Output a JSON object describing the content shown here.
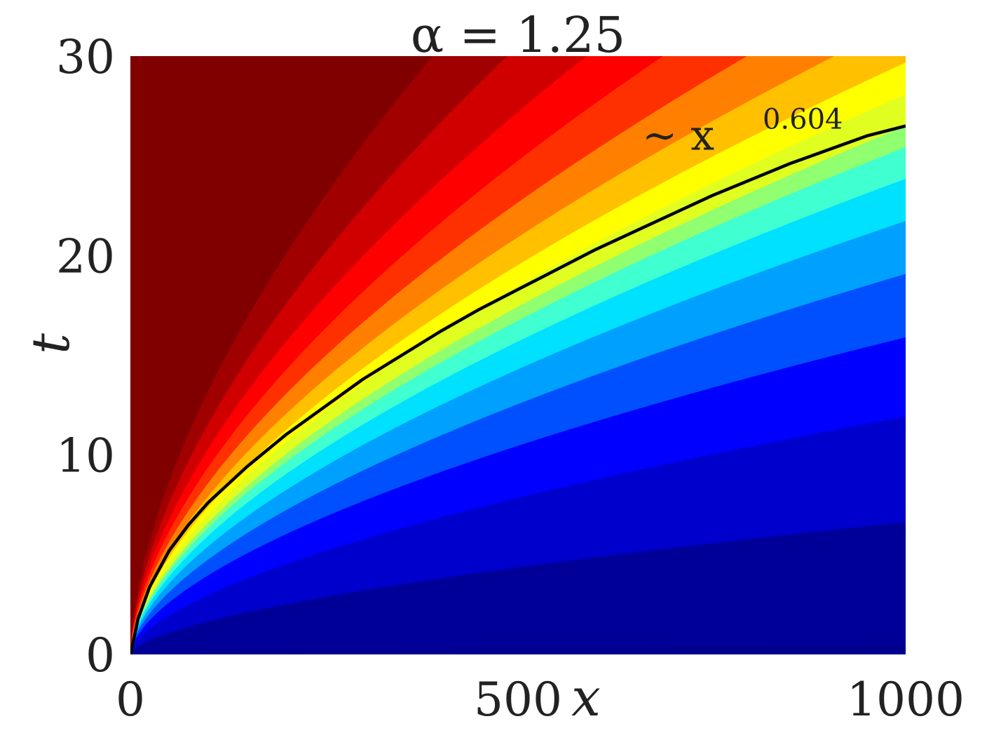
{
  "chart_data": {
    "type": "heatmap",
    "title": "α = 1.25",
    "xlabel": "x",
    "ylabel": "t",
    "xlim": [
      0,
      1000
    ],
    "ylim": [
      0,
      30
    ],
    "x_ticks": [
      0,
      500,
      1000
    ],
    "y_ticks": [
      0,
      10,
      20,
      30
    ],
    "x_tick_labels": [
      "0",
      "500",
      "1000"
    ],
    "y_tick_labels": [
      "0",
      "10",
      "20",
      "30"
    ],
    "colormap": "jet",
    "grid": false,
    "contour": {
      "color": "#000000",
      "description_exponent": 0.604,
      "points": [
        [
          0,
          0
        ],
        [
          10,
          1.8
        ],
        [
          25,
          3.4
        ],
        [
          50,
          5.2
        ],
        [
          75,
          6.5
        ],
        [
          100,
          7.6
        ],
        [
          150,
          9.4
        ],
        [
          200,
          11.0
        ],
        [
          250,
          12.4
        ],
        [
          300,
          13.8
        ],
        [
          350,
          15.0
        ],
        [
          400,
          16.2
        ],
        [
          450,
          17.3
        ],
        [
          500,
          18.3
        ],
        [
          550,
          19.3
        ],
        [
          600,
          20.3
        ],
        [
          650,
          21.2
        ],
        [
          700,
          22.1
        ],
        [
          750,
          23.0
        ],
        [
          800,
          23.8
        ],
        [
          850,
          24.6
        ],
        [
          900,
          25.3
        ],
        [
          950,
          26.0
        ],
        [
          1000,
          26.5
        ]
      ]
    },
    "annotation": {
      "prefix": "∼ x",
      "superscript": "0.604",
      "x": 660,
      "y": 25.3
    }
  }
}
